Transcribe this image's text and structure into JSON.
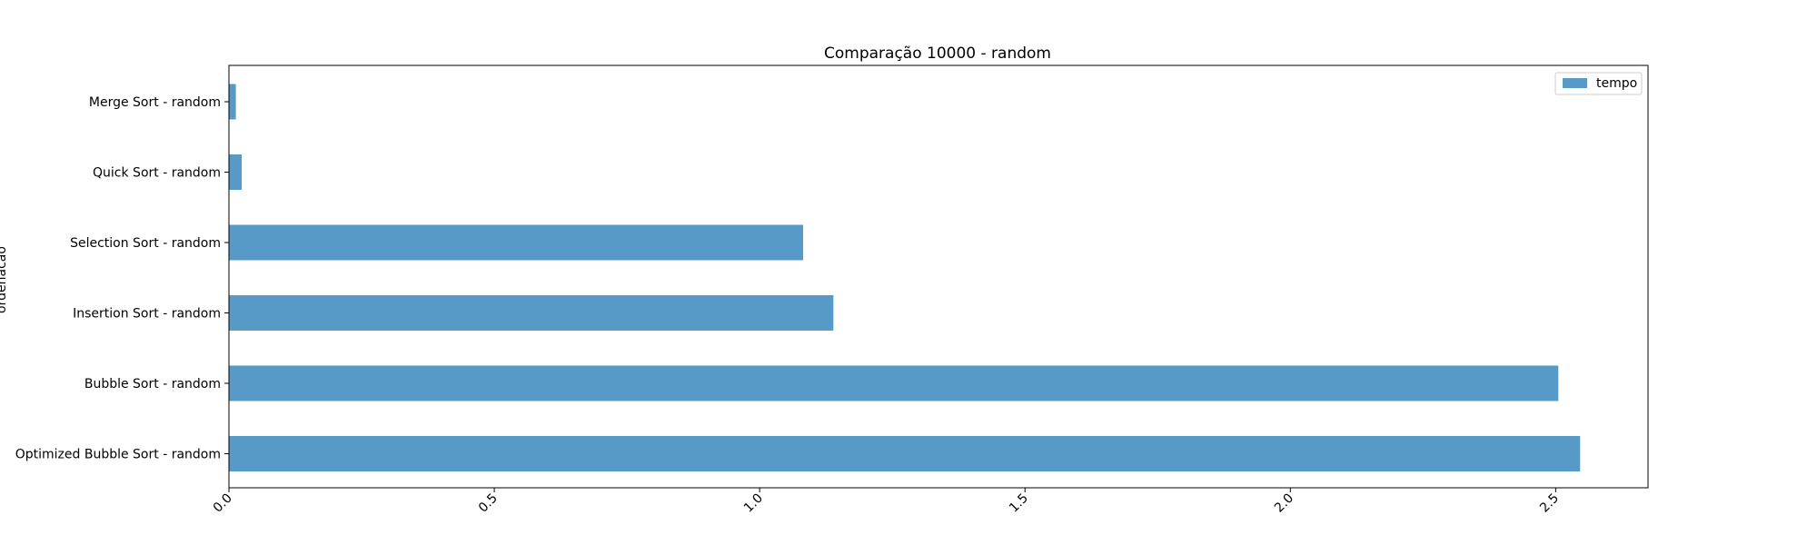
{
  "chart_data": {
    "type": "bar",
    "orientation": "horizontal",
    "title": "Comparação 10000 - random",
    "xlabel": "",
    "ylabel": "ordenacao",
    "categories": [
      "Merge Sort - random",
      "Quick Sort - random",
      "Selection Sort - random",
      "Insertion Sort - random",
      "Bubble Sort - random",
      "Optimized Bubble Sort - random"
    ],
    "series": [
      {
        "name": "tempo",
        "color": "#5799c7",
        "values": [
          0.013,
          0.024,
          1.082,
          1.139,
          2.505,
          2.546
        ]
      }
    ],
    "xlim": [
      0.0,
      2.674
    ],
    "xticks": [
      0.0,
      0.5,
      1.0,
      1.5,
      2.0,
      2.5
    ],
    "xtick_labels": [
      "0.0",
      "0.5",
      "1.0",
      "1.5",
      "2.0",
      "2.5"
    ],
    "xtick_rotation": 45,
    "grid": false,
    "legend": "top-right"
  }
}
